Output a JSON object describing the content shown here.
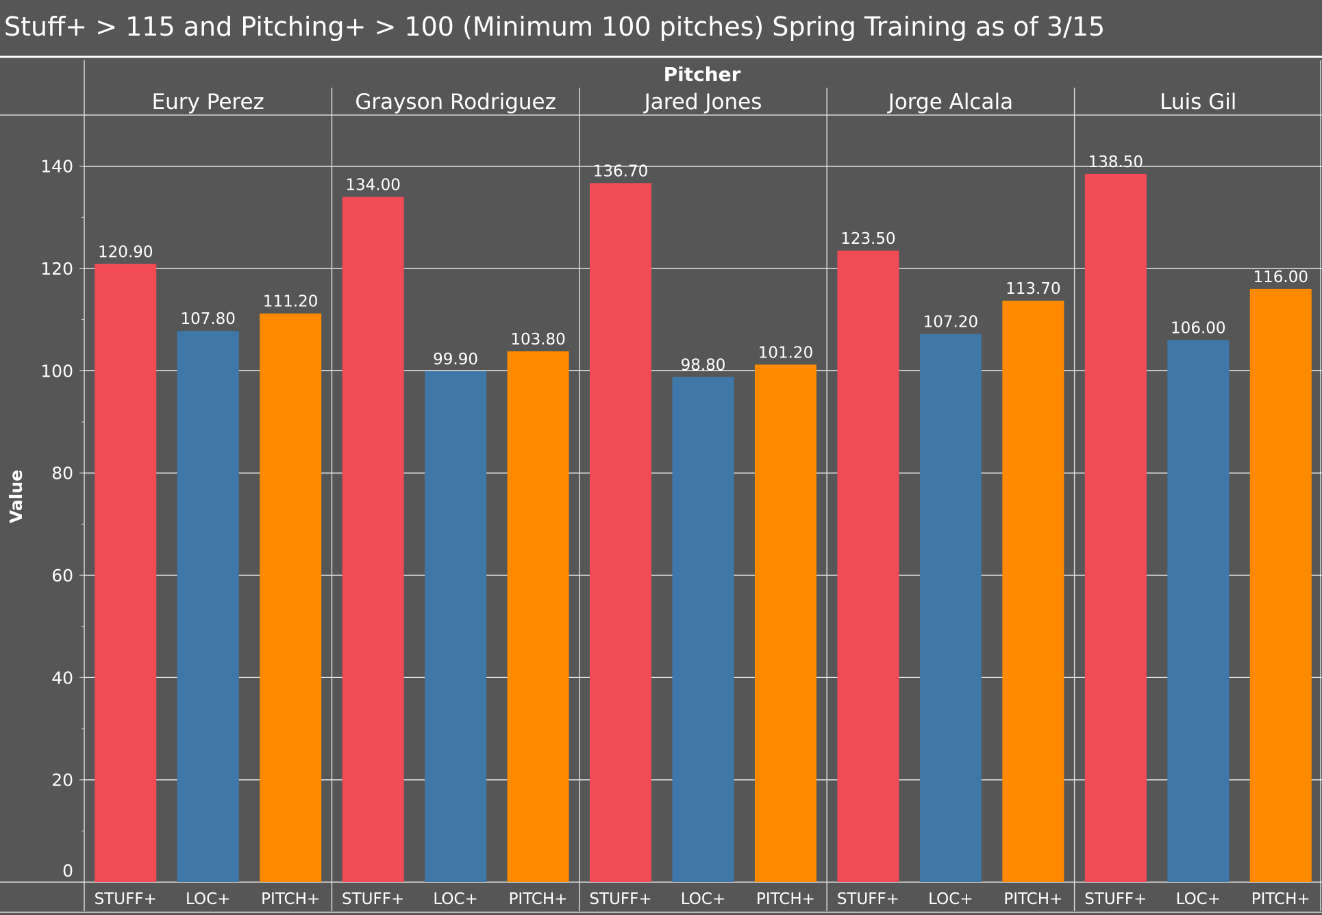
{
  "chart_data": {
    "type": "bar",
    "title": "Stuff+ > 115 and Pitching+ > 100 (Minimum 100 pitches) Spring Training as of 3/15",
    "header_label": "Pitcher",
    "ylabel": "Value",
    "ylim": [
      0,
      150
    ],
    "yticks": [
      0,
      20,
      40,
      60,
      80,
      100,
      120,
      140
    ],
    "grid": true,
    "metrics": [
      "STUFF+",
      "LOC+",
      "PITCH+"
    ],
    "colors": {
      "STUFF+": "#f24b55",
      "LOC+": "#3f78a8",
      "PITCH+": "#ff8a00"
    },
    "pitchers": [
      {
        "name": "Eury Perez",
        "values": [
          120.9,
          107.8,
          111.2
        ],
        "labels": [
          "120.90",
          "107.80",
          "111.20"
        ]
      },
      {
        "name": "Grayson Rodriguez",
        "values": [
          134.0,
          99.9,
          103.8
        ],
        "labels": [
          "134.00",
          "99.90",
          "103.80"
        ]
      },
      {
        "name": "Jared Jones",
        "values": [
          136.7,
          98.8,
          101.2
        ],
        "labels": [
          "136.70",
          "98.80",
          "101.20"
        ]
      },
      {
        "name": "Jorge Alcala",
        "values": [
          123.5,
          107.2,
          113.7
        ],
        "labels": [
          "123.50",
          "107.20",
          "113.70"
        ]
      },
      {
        "name": "Luis Gil",
        "values": [
          138.5,
          106.0,
          116.0
        ],
        "labels": [
          "138.50",
          "106.00",
          "116.00"
        ]
      }
    ]
  }
}
